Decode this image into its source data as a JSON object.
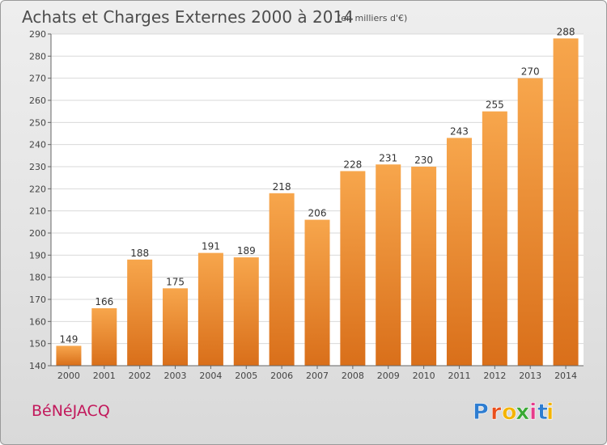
{
  "chart_data": {
    "type": "bar",
    "title": "Achats et Charges Externes 2000 à 2014",
    "subtitle": "(en milliers d'€)",
    "categories": [
      "2000",
      "2001",
      "2002",
      "2003",
      "2004",
      "2005",
      "2006",
      "2007",
      "2008",
      "2009",
      "2010",
      "2011",
      "2012",
      "2013",
      "2014"
    ],
    "values": [
      149,
      166,
      188,
      175,
      191,
      189,
      218,
      206,
      228,
      231,
      230,
      243,
      255,
      270,
      288
    ],
    "ylim": [
      140,
      290
    ],
    "yticks": [
      140,
      150,
      160,
      170,
      180,
      190,
      200,
      210,
      220,
      230,
      240,
      250,
      260,
      270,
      280,
      290
    ],
    "grid": "horizontal",
    "legend": "none",
    "xlabel": "",
    "ylabel": ""
  },
  "footer": {
    "commune": "BéNéJACQ",
    "brand_letters": [
      "P",
      "r",
      "o",
      "x",
      "i",
      "t",
      "i"
    ]
  },
  "colors": {
    "bar_top": "#f7a64c",
    "bar_bottom": "#d96f1a",
    "title": "#4d4d4d",
    "commune": "#c2185b",
    "grid": "#d9d9d9",
    "brand": [
      "#2e7dd1",
      "#e94e1b",
      "#f4b400",
      "#3aa935",
      "#e63b8a",
      "#2e7dd1",
      "#f4b400"
    ]
  }
}
